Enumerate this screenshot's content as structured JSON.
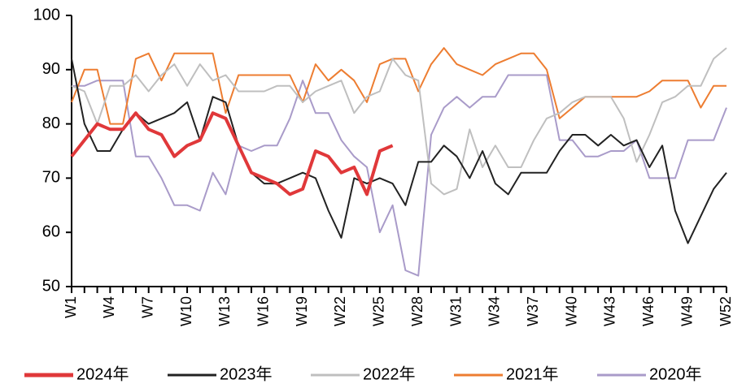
{
  "chart_data": {
    "type": "line",
    "categories": [
      "W1",
      null,
      null,
      "W4",
      null,
      null,
      "W7",
      null,
      null,
      "W10",
      null,
      null,
      "W13",
      null,
      null,
      "W16",
      null,
      null,
      "W19",
      null,
      null,
      "W22",
      null,
      null,
      "W25",
      null,
      null,
      "W28",
      null,
      null,
      "W31",
      null,
      null,
      "W34",
      null,
      null,
      "W37",
      null,
      null,
      "W40",
      null,
      null,
      "W43",
      null,
      null,
      "W46",
      null,
      null,
      "W49",
      null,
      null,
      "W52"
    ],
    "ylim": [
      50,
      100
    ],
    "yticks": [
      50,
      60,
      70,
      80,
      90,
      100
    ],
    "grid": false,
    "legend": "bottom",
    "series": [
      {
        "name": "2024年",
        "color": "#e0383a",
        "width": 4,
        "values": [
          74,
          77,
          80,
          79,
          79,
          82,
          79,
          78,
          74,
          76,
          77,
          82,
          81,
          76,
          71,
          70,
          69,
          67,
          68,
          75,
          74,
          71,
          72,
          67,
          75,
          76,
          null,
          null,
          null,
          null,
          null,
          null,
          null,
          null,
          null,
          null,
          null,
          null,
          null,
          null,
          null,
          null,
          null,
          null,
          null,
          null,
          null,
          null,
          null,
          null,
          null,
          null
        ]
      },
      {
        "name": "2023年",
        "color": "#222222",
        "width": 2,
        "values": [
          92,
          80,
          75,
          75,
          79,
          82,
          80,
          81,
          82,
          84,
          77,
          85,
          84,
          76,
          71,
          69,
          69,
          70,
          71,
          70,
          64,
          59,
          70,
          69,
          70,
          69,
          65,
          73,
          73,
          76,
          74,
          70,
          75,
          69,
          67,
          71,
          71,
          71,
          75,
          78,
          78,
          76,
          78,
          76,
          77,
          72,
          76,
          64,
          58,
          63,
          68,
          71
        ]
      },
      {
        "name": "2022年",
        "color": "#bfbfbf",
        "width": 2,
        "values": [
          87,
          86,
          80,
          87,
          87,
          89,
          86,
          89,
          91,
          87,
          91,
          88,
          89,
          86,
          86,
          86,
          87,
          87,
          84,
          86,
          87,
          88,
          82,
          85,
          86,
          92,
          89,
          88,
          69,
          67,
          68,
          79,
          72,
          76,
          72,
          72,
          77,
          81,
          82,
          84,
          85,
          85,
          85,
          81,
          73,
          78,
          84,
          85,
          87,
          87,
          92,
          94
        ]
      },
      {
        "name": "2021年",
        "color": "#ed7d31",
        "width": 2,
        "values": [
          84,
          90,
          90,
          80,
          80,
          92,
          93,
          88,
          93,
          93,
          93,
          93,
          82,
          89,
          89,
          89,
          89,
          89,
          84,
          91,
          88,
          90,
          88,
          84,
          91,
          92,
          92,
          86,
          91,
          94,
          91,
          90,
          89,
          91,
          92,
          93,
          93,
          90,
          81,
          83,
          85,
          85,
          85,
          85,
          85,
          86,
          88,
          88,
          88,
          83,
          87,
          87
        ]
      },
      {
        "name": "2020年",
        "color": "#a99bc9",
        "width": 2,
        "values": [
          87,
          87,
          88,
          88,
          88,
          74,
          74,
          70,
          65,
          65,
          64,
          71,
          67,
          76,
          75,
          76,
          76,
          81,
          88,
          82,
          82,
          77,
          74,
          72,
          60,
          65,
          53,
          52,
          78,
          83,
          85,
          83,
          85,
          85,
          89,
          89,
          89,
          89,
          77,
          77,
          74,
          74,
          75,
          75,
          77,
          70,
          70,
          70,
          77,
          77,
          77,
          83
        ]
      }
    ]
  }
}
